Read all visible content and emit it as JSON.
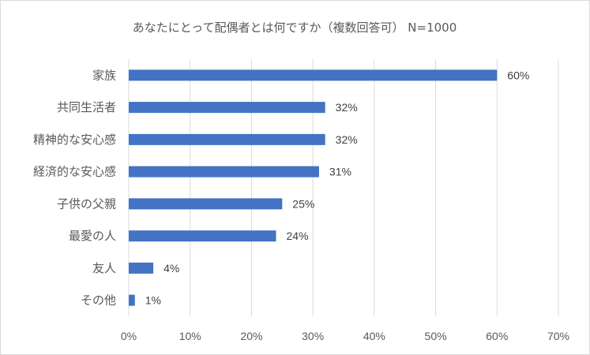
{
  "chart_data": {
    "type": "bar",
    "orientation": "horizontal",
    "title": "あなたにとって配偶者とは何ですか（複数回答可） N=1000",
    "categories": [
      "家族",
      "共同生活者",
      "精神的な安心感",
      "経済的な安心感",
      "子供の父親",
      "最愛の人",
      "友人",
      "その他"
    ],
    "values": [
      60,
      32,
      32,
      31,
      25,
      24,
      4,
      1
    ],
    "value_suffix": "%",
    "xlim": [
      0,
      70
    ],
    "x_ticks": [
      0,
      10,
      20,
      30,
      40,
      50,
      60,
      70
    ],
    "x_tick_labels": [
      "0%",
      "10%",
      "20%",
      "30%",
      "40%",
      "50%",
      "60%",
      "70%"
    ],
    "xlabel": "",
    "ylabel": "",
    "grid": "vertical",
    "legend": "none",
    "bar_color": "#4472c4",
    "grid_color": "#d9d9d9"
  }
}
